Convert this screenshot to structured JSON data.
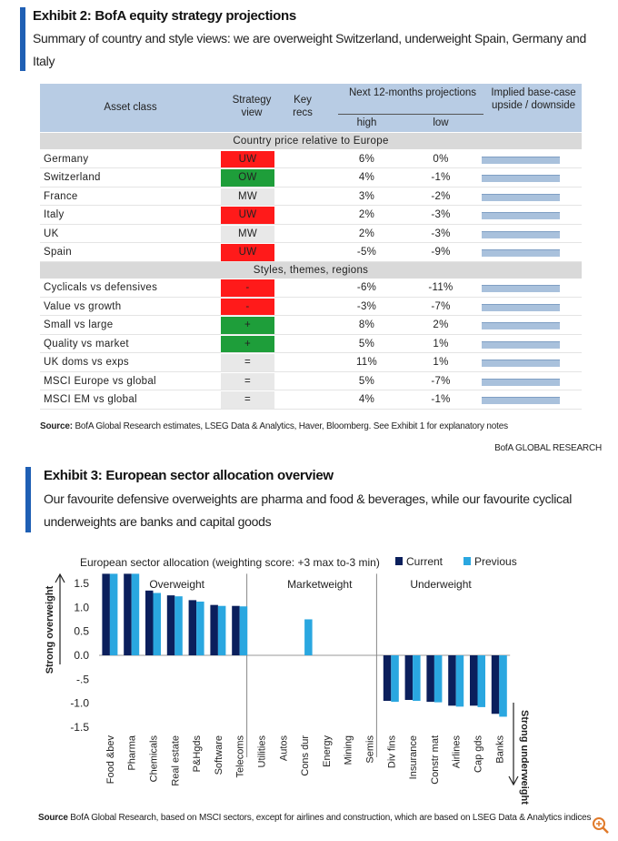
{
  "exhibit2": {
    "title": "Exhibit 2: BofA equity strategy projections",
    "subtitle": "Summary of country and style views: we are overweight Switzerland, underweight Spain, Germany and Italy",
    "table": {
      "headers": {
        "asset": "Asset class",
        "view": "Strategy view",
        "recs": "Key recs",
        "projections": "Next 12-months projections",
        "high": "high",
        "low": "low",
        "implied": "Implied base-case upside / downside"
      },
      "sections": [
        {
          "title": "Country price relative to Europe",
          "rows": [
            [
              "Germany",
              "UW",
              "6%",
              "0%"
            ],
            [
              "Switzerland",
              "OW",
              "4%",
              "-1%"
            ],
            [
              "France",
              "MW",
              "3%",
              "-2%"
            ],
            [
              "Italy",
              "UW",
              "2%",
              "-3%"
            ],
            [
              "UK",
              "MW",
              "2%",
              "-3%"
            ],
            [
              "Spain",
              "UW",
              "-5%",
              "-9%"
            ]
          ]
        },
        {
          "title": "Styles, themes, regions",
          "rows": [
            [
              "Cyclicals vs defensives",
              "-",
              "-6%",
              "-11%"
            ],
            [
              "Value vs growth",
              "-",
              "-3%",
              "-7%"
            ],
            [
              "Small vs large",
              "+",
              "8%",
              "2%"
            ],
            [
              "Quality vs market",
              "+",
              "5%",
              "1%"
            ],
            [
              "UK doms vs exps",
              "=",
              "11%",
              "1%"
            ],
            [
              "MSCI Europe vs global",
              "=",
              "5%",
              "-7%"
            ],
            [
              "MSCI EM vs global",
              "=",
              "4%",
              "-1%"
            ]
          ]
        }
      ]
    },
    "source_label": "Source:",
    "source": "BofA Global Research estimates, LSEG Data & Analytics, Haver, Bloomberg. See Exhibit 1 for explanatory notes",
    "credit": "BofA GLOBAL RESEARCH"
  },
  "exhibit3": {
    "title": "Exhibit 3: European sector allocation overview",
    "subtitle": "Our favourite defensive overweights are pharma and food & beverages, while our favourite cyclical underweights are banks and capital goods",
    "source_label": "Source",
    "source": "BofA Global Research, based on MSCI sectors, except for airlines and construction, which are based on LSEG Data & Analytics indices"
  },
  "chart_data": {
    "type": "bar",
    "title": "European sector allocation (weighting score: +3 max to-3 min)",
    "categories": [
      "Food &bev",
      "Pharma",
      "Chemicals",
      "Real estate",
      "P&Hgds",
      "Software",
      "Telecoms",
      "Utilities",
      "Autos",
      "Cons dur",
      "Energy",
      "Mining",
      "Semis",
      "Div fins",
      "Insurance",
      "Constr mat",
      "Airlines",
      "Cap gds",
      "Banks"
    ],
    "series": [
      {
        "name": "Current",
        "color": "#0b1f5c",
        "values": [
          1.7,
          1.7,
          1.35,
          1.25,
          1.15,
          1.05,
          1.03,
          0,
          0,
          0,
          0,
          0,
          0,
          -0.95,
          -0.93,
          -0.97,
          -1.05,
          -1.05,
          -1.22
        ]
      },
      {
        "name": "Previous",
        "color": "#2aa7e0",
        "values": [
          1.7,
          1.7,
          1.3,
          1.23,
          1.12,
          1.03,
          1.02,
          0,
          0,
          0.75,
          0,
          0,
          0,
          -0.97,
          -0.95,
          -0.98,
          -1.07,
          -1.08,
          -1.28
        ]
      }
    ],
    "group_labels": [
      "Overweight",
      "Marketweight",
      "Underweight"
    ],
    "axis_label_top": "Strong overweight",
    "axis_label_bottom": "Strong underweight",
    "ylim": [
      -1.6,
      1.7
    ],
    "yticks": [
      {
        "value": 1.5,
        "label": "1.5"
      },
      {
        "value": 1,
        "label": "1.0"
      },
      {
        "value": 0.5,
        "label": "0.5"
      },
      {
        "value": 0,
        "label": "0.0"
      },
      {
        "value": -0.5,
        "label": "-.5"
      },
      {
        "value": -1,
        "label": "-1.0"
      },
      {
        "value": -1.5,
        "label": "-1.5"
      }
    ]
  }
}
